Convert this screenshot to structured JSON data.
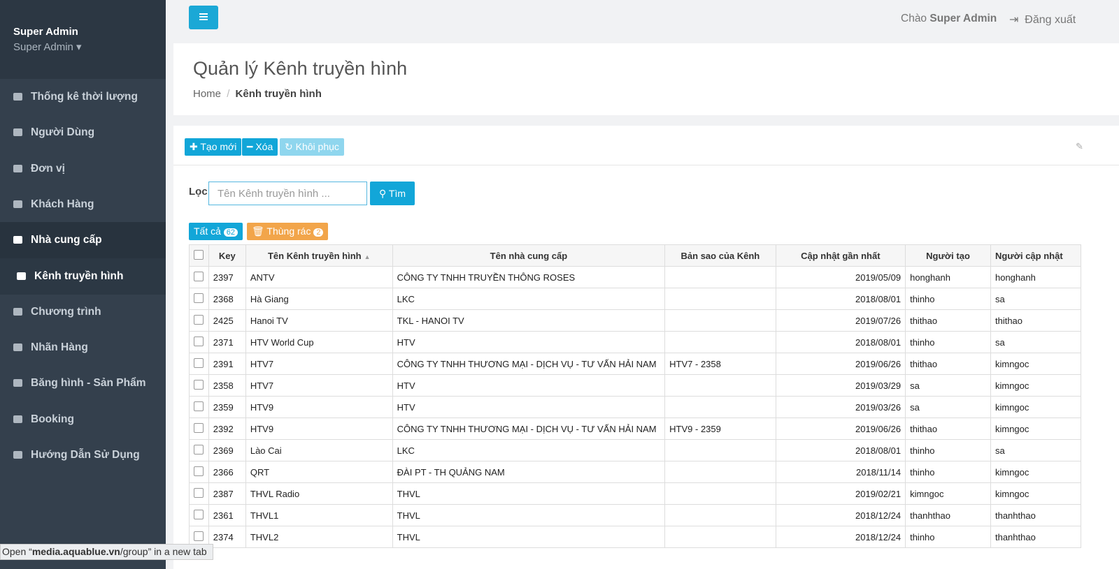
{
  "sidebar": {
    "user_name": "Super Admin",
    "user_role": "Super Admin",
    "menu": [
      "Thống kê thời lượng",
      "Người Dùng",
      "Đơn vị",
      "Khách Hàng",
      "Nhà cung cấp",
      "Kênh truyền hình",
      "Chương trình",
      "Nhãn Hàng",
      "Băng hình - Sản Phẩm",
      "Booking",
      "Hướng Dẫn Sử Dụng"
    ]
  },
  "topbar": {
    "greeting": "Chào",
    "greeting_name": "Super Admin",
    "logout": "Đăng xuất"
  },
  "header": {
    "title": "Quản lý Kênh truyền hình",
    "breadcrumb": [
      "Home",
      "Kênh truyền hình"
    ]
  },
  "toolbar": {
    "buttons": [
      "Tạo mới",
      "Xóa",
      "Khôi phục"
    ]
  },
  "filter": {
    "label": "Lọc",
    "placeholder": "Tên Kênh truyền hình ...",
    "button": "Tìm"
  },
  "tabs": [
    {
      "label": "Tất cả",
      "count": "62"
    },
    {
      "label": "Thùng rác",
      "count": "2"
    }
  ],
  "table": {
    "columns": [
      "Key",
      "Tên Kênh truyền hình",
      "Tên nhà cung cấp",
      "Bản sao của Kênh",
      "Cập nhật gần nhất",
      "Người tạo",
      "Người cập nhật"
    ],
    "rows": [
      [
        "2397",
        "ANTV",
        "CÔNG TY TNHH TRUYỀN THÔNG ROSES",
        "",
        "2019/05/09",
        "honghanh",
        "honghanh"
      ],
      [
        "2368",
        "Hà Giang",
        "LKC",
        "",
        "2018/08/01",
        "thinho",
        "sa"
      ],
      [
        "2425",
        "Hanoi TV",
        "TKL - HANOI TV",
        "",
        "2019/07/26",
        "thithao",
        "thithao"
      ],
      [
        "2371",
        "HTV World Cup",
        "HTV",
        "",
        "2018/08/01",
        "thinho",
        "sa"
      ],
      [
        "2391",
        "HTV7",
        "CÔNG TY TNHH THƯƠNG MẠI - DỊCH VỤ -  TƯ VẤN HẢI NAM",
        "HTV7 - 2358",
        "2019/06/26",
        "thithao",
        "kimngoc"
      ],
      [
        "2358",
        "HTV7",
        "HTV",
        "",
        "2019/03/29",
        "sa",
        "kimngoc"
      ],
      [
        "2359",
        "HTV9",
        "HTV",
        "",
        "2019/03/26",
        "sa",
        "kimngoc"
      ],
      [
        "2392",
        "HTV9",
        "CÔNG TY TNHH THƯƠNG MẠI - DỊCH VỤ -  TƯ VẤN HẢI NAM",
        "HTV9 - 2359",
        "2019/06/26",
        "thithao",
        "kimngoc"
      ],
      [
        "2369",
        "Lào Cai",
        "LKC",
        "",
        "2018/08/01",
        "thinho",
        "sa"
      ],
      [
        "2366",
        "QRT",
        "ĐÀI PT - TH QUẢNG NAM",
        "",
        "2018/11/14",
        "thinho",
        "kimngoc"
      ],
      [
        "2387",
        "THVL Radio",
        "THVL",
        "",
        "2019/02/21",
        "kimngoc",
        "kimngoc"
      ],
      [
        "2361",
        "THVL1",
        "THVL",
        "",
        "2018/12/24",
        "thanhthao",
        "thanhthao"
      ],
      [
        "2374",
        "THVL2",
        "THVL",
        "",
        "2018/12/24",
        "thinho",
        "thanhthao"
      ]
    ]
  },
  "status_bar": {
    "prefix": "Open “",
    "host": "media.aquablue.vn",
    "path": "/group",
    "suffix": "” in a new tab"
  }
}
